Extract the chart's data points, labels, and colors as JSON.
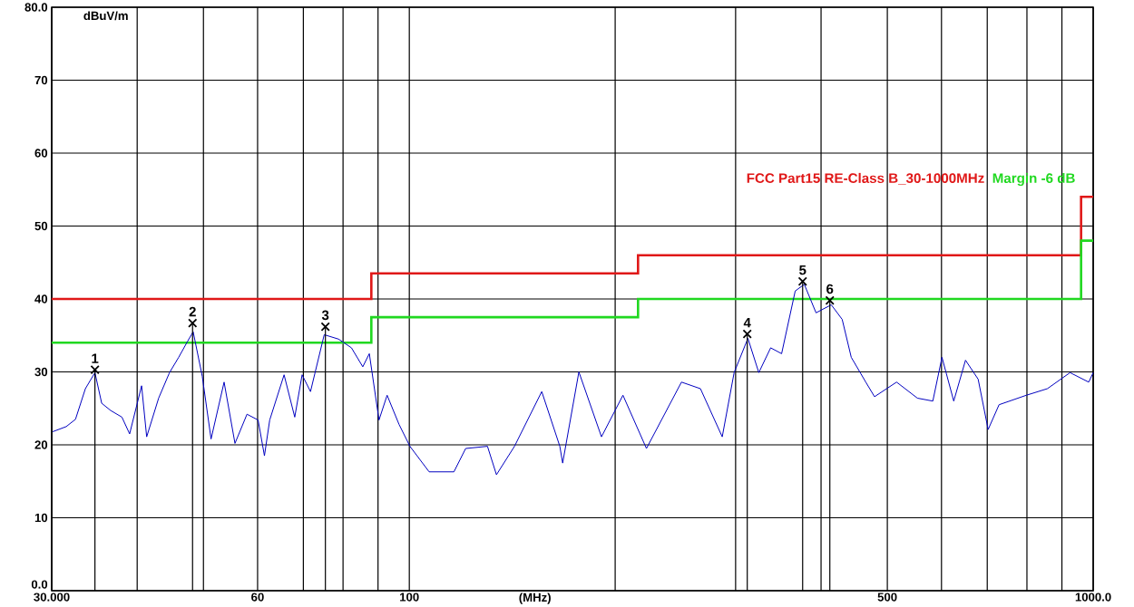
{
  "chart_data": {
    "type": "line",
    "xlabel": "(MHz)",
    "ylabel": "dBuV/m",
    "log": "x",
    "grid": true,
    "legend": "top right",
    "xlim": [
      30,
      1000
    ],
    "ylim": [
      0,
      80
    ],
    "xticks": [
      {
        "value": 30,
        "label": "30.000"
      },
      {
        "value": 40,
        "label": null
      },
      {
        "value": 50,
        "label": null
      },
      {
        "value": 60,
        "label": "60"
      },
      {
        "value": 70,
        "label": null
      },
      {
        "value": 80,
        "label": null
      },
      {
        "value": 90,
        "label": null
      },
      {
        "value": 100,
        "label": "100"
      },
      {
        "value": 200,
        "label": null
      },
      {
        "value": 300,
        "label": null
      },
      {
        "value": 400,
        "label": null
      },
      {
        "value": 500,
        "label": "500"
      },
      {
        "value": 600,
        "label": null
      },
      {
        "value": 700,
        "label": null
      },
      {
        "value": 800,
        "label": null
      },
      {
        "value": 900,
        "label": null
      },
      {
        "value": 1000,
        "label": "1000.0"
      }
    ],
    "yticks": [
      {
        "value": 0,
        "label": "0.0"
      },
      10,
      20,
      30,
      40,
      50,
      60,
      70,
      {
        "value": 80,
        "label": "80.0"
      }
    ],
    "series": [
      {
        "type": "step",
        "name": "FCC Part15 RE-Class B_30-1000MHz",
        "color": "#e01818",
        "x": [
          30,
          88,
          216,
          960,
          1000
        ],
        "values": [
          40,
          43.5,
          46,
          54,
          54
        ]
      },
      {
        "type": "step",
        "name": "Margin -6 dB",
        "color": "#20d820",
        "x": [
          30,
          88,
          216,
          960,
          1000
        ],
        "values": [
          34,
          37.5,
          40,
          48,
          48
        ]
      },
      {
        "color": "#0000c0",
        "line_style": "solid",
        "x": [
          30.1,
          31.5,
          32.5,
          33.6,
          34.7,
          35.5,
          36.6,
          38.0,
          39.0,
          40.6,
          41.3,
          43.0,
          44.6,
          46.0,
          47.4,
          48.3,
          49.8,
          51.3,
          53.6,
          55.6,
          57.9,
          60.1,
          61.4,
          62.5,
          65.6,
          68.0,
          69.7,
          71.7,
          75.1,
          78.8,
          82.3,
          85.5,
          87.4,
          90.3,
          92.8,
          96.6,
          100.2,
          106.9,
          116.2,
          120.9,
          130.1,
          134.1,
          142.5,
          156.2,
          166.0,
          167.6,
          177.0,
          191.0,
          205.3,
          222.2,
          250.0,
          266.5,
          286.8,
          298.5,
          312.7,
          324.4,
          337.6,
          350.3,
          366.7,
          378.1,
          393.4,
          414.0,
          429.5,
          442.8,
          465.0,
          478.9,
          515.8,
          553.3,
          582.8,
          601.0,
          625.3,
          650.6,
          678.9,
          702.1,
          728.4,
          798.6,
          857.0,
          925.0,
          985.0,
          1000
        ],
        "values": [
          21.8,
          22.5,
          23.5,
          27.7,
          29.9,
          25.7,
          24.7,
          23.8,
          21.5,
          28.1,
          21.1,
          26.4,
          29.9,
          32.0,
          34.2,
          35.5,
          29.4,
          20.8,
          28.6,
          20.2,
          24.2,
          23.4,
          18.5,
          23.4,
          29.6,
          23.8,
          29.6,
          27.3,
          35.1,
          34.5,
          33.3,
          30.7,
          32.5,
          23.4,
          26.8,
          22.8,
          19.8,
          16.3,
          16.3,
          19.5,
          19.8,
          15.9,
          19.8,
          27.3,
          19.8,
          17.5,
          30.0,
          21.1,
          26.8,
          19.5,
          28.6,
          27.7,
          21.1,
          29.9,
          34.6,
          29.9,
          33.3,
          32.5,
          41.1,
          42.0,
          38.1,
          39.2,
          37.2,
          32.0,
          28.6,
          26.6,
          28.6,
          26.4,
          26.0,
          32.0,
          26.0,
          31.6,
          29.0,
          22.1,
          25.5,
          26.8,
          27.7,
          29.9,
          28.6,
          29.9
        ]
      },
      {
        "type": "lollipop",
        "color": "#000000",
        "marker": "cross",
        "x": [
          34.7,
          48.2,
          75.4,
          312,
          376,
          412
        ],
        "values": [
          30.3,
          36.7,
          36.2,
          35.2,
          42.4,
          39.8
        ]
      }
    ],
    "annotations": [
      {
        "text": "1",
        "x": 34.7,
        "y": 30.3
      },
      {
        "text": "2",
        "x": 48.2,
        "y": 36.7
      },
      {
        "text": "3",
        "x": 75.4,
        "y": 36.2
      },
      {
        "text": "4",
        "x": 312,
        "y": 35.2
      },
      {
        "text": "5",
        "x": 376,
        "y": 42.4
      },
      {
        "text": "6",
        "x": 412,
        "y": 39.8
      }
    ]
  }
}
